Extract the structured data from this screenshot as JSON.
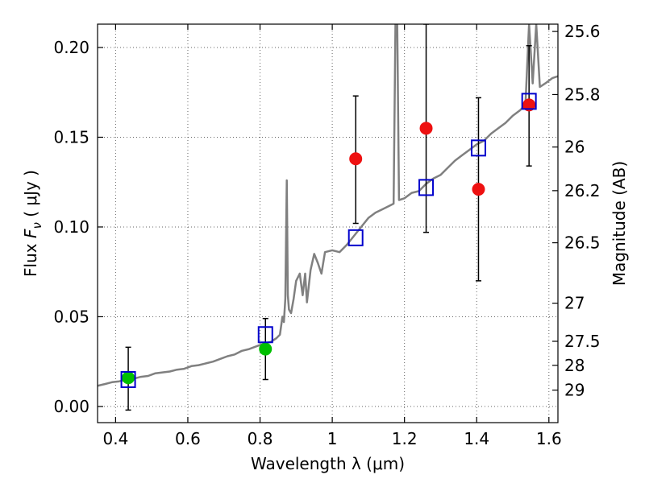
{
  "chart_data": {
    "type": "scatter",
    "title": "",
    "xlabel": "Wavelength  λ (μm)",
    "ylabel": "Flux  F_ν  ( μJy )",
    "ylabel_right": "Magnitude (AB)",
    "xlim": [
      0.35,
      1.625
    ],
    "ylim": [
      -0.009,
      0.213
    ],
    "grid": true,
    "x_ticks": [
      0.4,
      0.6,
      0.8,
      1.0,
      1.2,
      1.4,
      1.6
    ],
    "x_tick_labels": [
      "0.4",
      "0.6",
      "0.8",
      "1",
      "1.2",
      "1.4",
      "1.6"
    ],
    "y_ticks": [
      0.0,
      0.05,
      0.1,
      0.15,
      0.2
    ],
    "y_tick_labels": [
      "0.00",
      "0.05",
      "0.10",
      "0.15",
      "0.20"
    ],
    "right_ticks": [
      {
        "label": "25.6",
        "mag": 25.6
      },
      {
        "label": "25.8",
        "mag": 25.8
      },
      {
        "label": "26",
        "mag": 26.0
      },
      {
        "label": "26.2",
        "mag": 26.2
      },
      {
        "label": "26.5",
        "mag": 26.5
      },
      {
        "label": "27",
        "mag": 27.0
      },
      {
        "label": "27.5",
        "mag": 27.5
      },
      {
        "label": "28",
        "mag": 28.0
      },
      {
        "label": "29",
        "mag": 29.0
      }
    ],
    "template": {
      "color": "#808080",
      "points": [
        [
          0.35,
          0.0115
        ],
        [
          0.37,
          0.0125
        ],
        [
          0.39,
          0.0135
        ],
        [
          0.41,
          0.014
        ],
        [
          0.43,
          0.015
        ],
        [
          0.45,
          0.0155
        ],
        [
          0.47,
          0.0165
        ],
        [
          0.49,
          0.017
        ],
        [
          0.51,
          0.0185
        ],
        [
          0.53,
          0.019
        ],
        [
          0.55,
          0.0195
        ],
        [
          0.57,
          0.0205
        ],
        [
          0.59,
          0.021
        ],
        [
          0.61,
          0.0225
        ],
        [
          0.63,
          0.023
        ],
        [
          0.65,
          0.024
        ],
        [
          0.67,
          0.025
        ],
        [
          0.69,
          0.0265
        ],
        [
          0.71,
          0.028
        ],
        [
          0.73,
          0.029
        ],
        [
          0.75,
          0.031
        ],
        [
          0.77,
          0.032
        ],
        [
          0.79,
          0.0335
        ],
        [
          0.81,
          0.035
        ],
        [
          0.83,
          0.036
        ],
        [
          0.845,
          0.038
        ],
        [
          0.855,
          0.04
        ],
        [
          0.862,
          0.05
        ],
        [
          0.866,
          0.047
        ],
        [
          0.87,
          0.06
        ],
        [
          0.874,
          0.126
        ],
        [
          0.877,
          0.062
        ],
        [
          0.88,
          0.054
        ],
        [
          0.886,
          0.052
        ],
        [
          0.893,
          0.06
        ],
        [
          0.9,
          0.07
        ],
        [
          0.91,
          0.074
        ],
        [
          0.918,
          0.062
        ],
        [
          0.925,
          0.074
        ],
        [
          0.93,
          0.058
        ],
        [
          0.94,
          0.076
        ],
        [
          0.95,
          0.085
        ],
        [
          0.96,
          0.08
        ],
        [
          0.97,
          0.074
        ],
        [
          0.98,
          0.086
        ],
        [
          1.0,
          0.087
        ],
        [
          1.02,
          0.086
        ],
        [
          1.04,
          0.09
        ],
        [
          1.06,
          0.095
        ],
        [
          1.08,
          0.1
        ],
        [
          1.1,
          0.105
        ],
        [
          1.12,
          0.108
        ],
        [
          1.14,
          0.11
        ],
        [
          1.16,
          0.112
        ],
        [
          1.17,
          0.113
        ],
        [
          1.175,
          0.213
        ],
        [
          1.18,
          0.213
        ],
        [
          1.185,
          0.115
        ],
        [
          1.2,
          0.116
        ],
        [
          1.22,
          0.119
        ],
        [
          1.24,
          0.12
        ],
        [
          1.26,
          0.124
        ],
        [
          1.28,
          0.127
        ],
        [
          1.3,
          0.129
        ],
        [
          1.32,
          0.133
        ],
        [
          1.34,
          0.137
        ],
        [
          1.36,
          0.14
        ],
        [
          1.38,
          0.143
        ],
        [
          1.4,
          0.146
        ],
        [
          1.42,
          0.148
        ],
        [
          1.44,
          0.152
        ],
        [
          1.46,
          0.155
        ],
        [
          1.48,
          0.158
        ],
        [
          1.5,
          0.162
        ],
        [
          1.52,
          0.165
        ],
        [
          1.535,
          0.168
        ],
        [
          1.545,
          0.213
        ],
        [
          1.555,
          0.18
        ],
        [
          1.565,
          0.213
        ],
        [
          1.575,
          0.178
        ],
        [
          1.59,
          0.18
        ],
        [
          1.61,
          0.183
        ],
        [
          1.625,
          0.184
        ]
      ]
    },
    "series": [
      {
        "marker": "circle",
        "color": "#00c000",
        "points": [
          {
            "x": 0.435,
            "y": 0.016,
            "ylo": -0.002,
            "yhi": 0.033
          },
          {
            "x": 0.815,
            "y": 0.032,
            "ylo": 0.015,
            "yhi": 0.049
          }
        ]
      },
      {
        "marker": "circle",
        "color": "#ee1111",
        "points": [
          {
            "x": 1.065,
            "y": 0.138,
            "ylo": 0.102,
            "yhi": 0.173
          },
          {
            "x": 1.26,
            "y": 0.155,
            "ylo": 0.097,
            "yhi": 0.213
          },
          {
            "x": 1.405,
            "y": 0.121,
            "ylo": 0.07,
            "yhi": 0.172
          },
          {
            "x": 1.545,
            "y": 0.168,
            "ylo": 0.134,
            "yhi": 0.201
          }
        ]
      },
      {
        "marker": "square",
        "color": "#0000cc",
        "points": [
          {
            "x": 0.435,
            "y": 0.015
          },
          {
            "x": 0.815,
            "y": 0.04
          },
          {
            "x": 1.065,
            "y": 0.094
          },
          {
            "x": 1.26,
            "y": 0.122
          },
          {
            "x": 1.405,
            "y": 0.144
          },
          {
            "x": 1.545,
            "y": 0.17
          }
        ]
      }
    ]
  }
}
